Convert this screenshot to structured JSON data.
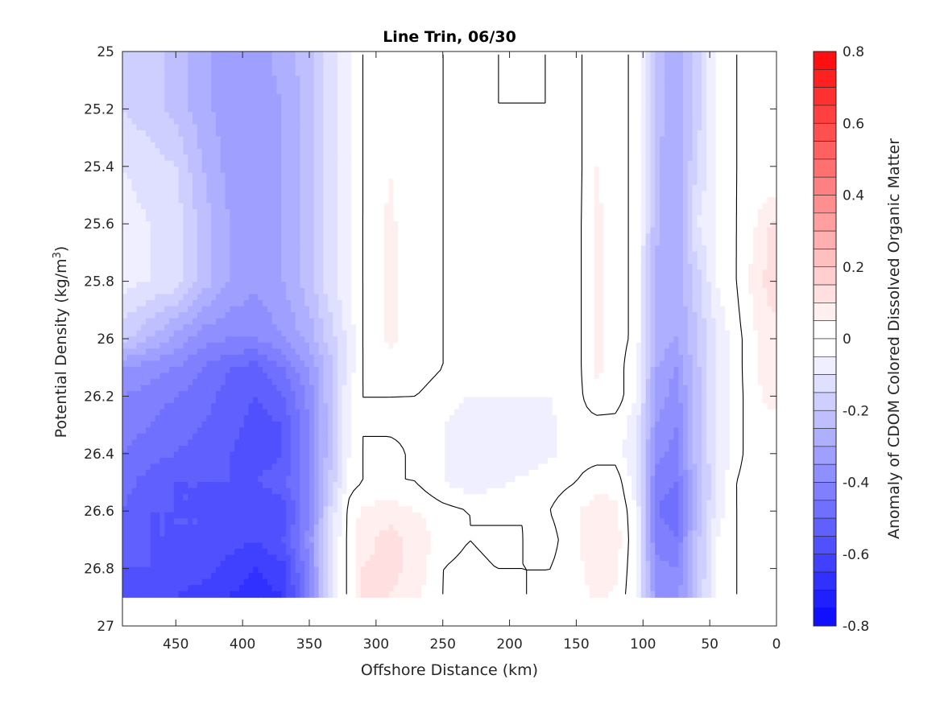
{
  "chart_data": {
    "type": "heatmap",
    "title": "Line Trin, 06/30",
    "xlabel": "Offshore Distance (km)",
    "ylabel_main": "Potential Density (kg/m",
    "ylabel_sup": "3",
    "ylabel_end": ")",
    "colorbar_label": "Anomaly of CDOM Colored Dissolved Organic Matter",
    "xlim": [
      0,
      490
    ],
    "x_reversed": true,
    "ylim": [
      25,
      27
    ],
    "y_reversed": true,
    "x_ticks": [
      450,
      400,
      350,
      300,
      250,
      200,
      150,
      100,
      50,
      0
    ],
    "x_tick_labels": [
      "450",
      "400",
      "350",
      "300",
      "250",
      "200",
      "150",
      "100",
      "50",
      "0"
    ],
    "y_ticks": [
      25,
      25.2,
      25.4,
      25.6,
      25.8,
      26,
      26.2,
      26.4,
      26.6,
      26.8,
      27
    ],
    "y_tick_labels": [
      "25",
      "25.2",
      "25.4",
      "25.6",
      "25.8",
      "26",
      "26.2",
      "26.4",
      "26.6",
      "26.8",
      "27"
    ],
    "clim": [
      -0.8,
      0.8
    ],
    "color_step": 0.05,
    "colorbar_ticks": [
      0.8,
      0.6,
      0.4,
      0.2,
      0,
      -0.2,
      -0.4,
      -0.6,
      -0.8
    ],
    "colorbar_tick_labels": [
      "0.8",
      "0.6",
      "0.4",
      "0.2",
      "0",
      "-0.2",
      "-0.4",
      "-0.6",
      "-0.8"
    ],
    "colormap": {
      "negative": "#0000ff",
      "zero": "#ffffff",
      "positive": "#ff0000"
    },
    "zero_contour_color": "#000000",
    "grid": false,
    "data_ymax": 26.9,
    "x": [
      490,
      470,
      450,
      430,
      410,
      390,
      370,
      350,
      335,
      320,
      310,
      290,
      270,
      250,
      230,
      210,
      190,
      170,
      150,
      135,
      120,
      105,
      90,
      75,
      60,
      45,
      30,
      15,
      5
    ],
    "y": [
      25.0,
      25.2,
      25.4,
      25.6,
      25.8,
      26.0,
      26.1,
      26.2,
      26.3,
      26.4,
      26.5,
      26.6,
      26.7,
      26.8,
      26.9
    ],
    "z": [
      [
        -0.15,
        -0.18,
        -0.22,
        -0.28,
        -0.33,
        -0.32,
        -0.28,
        -0.22,
        -0.12,
        -0.05,
        0.0,
        0.05,
        0.02,
        0.0,
        -0.01,
        0.0,
        0.0,
        0.0,
        -0.02,
        0.05,
        0.03,
        -0.02,
        -0.22,
        -0.28,
        -0.18,
        -0.05,
        0.0,
        0.0,
        0.0
      ],
      [
        -0.15,
        -0.18,
        -0.22,
        -0.28,
        -0.33,
        -0.34,
        -0.3,
        -0.22,
        -0.12,
        -0.05,
        0.0,
        0.05,
        0.02,
        0.0,
        -0.01,
        0.0,
        0.0,
        0.0,
        -0.02,
        0.05,
        0.03,
        -0.02,
        -0.22,
        -0.3,
        -0.18,
        -0.05,
        0.0,
        0.0,
        0.0
      ],
      [
        -0.1,
        -0.12,
        -0.15,
        -0.25,
        -0.32,
        -0.34,
        -0.3,
        -0.22,
        -0.12,
        -0.05,
        0.0,
        0.05,
        0.02,
        0.0,
        -0.01,
        0.0,
        -0.02,
        -0.04,
        -0.02,
        0.05,
        0.03,
        -0.02,
        -0.24,
        -0.3,
        -0.15,
        -0.05,
        0.0,
        0.0,
        0.0
      ],
      [
        -0.08,
        -0.1,
        -0.12,
        -0.22,
        -0.3,
        -0.34,
        -0.3,
        -0.22,
        -0.12,
        -0.05,
        0.0,
        0.06,
        0.02,
        0.0,
        -0.01,
        0.0,
        -0.02,
        -0.04,
        -0.02,
        0.06,
        0.03,
        -0.02,
        -0.24,
        -0.3,
        -0.1,
        -0.05,
        0.0,
        0.05,
        0.1
      ],
      [
        -0.08,
        -0.1,
        -0.12,
        -0.22,
        -0.3,
        -0.34,
        -0.3,
        -0.22,
        -0.12,
        -0.05,
        0.0,
        0.06,
        0.02,
        0.0,
        -0.01,
        0.0,
        -0.02,
        -0.04,
        -0.02,
        0.06,
        0.03,
        -0.02,
        -0.26,
        -0.3,
        -0.18,
        -0.05,
        0.0,
        0.08,
        0.12
      ],
      [
        -0.18,
        -0.25,
        -0.32,
        -0.38,
        -0.4,
        -0.4,
        -0.35,
        -0.28,
        -0.18,
        -0.08,
        0.0,
        0.06,
        0.02,
        0.0,
        -0.01,
        0.0,
        -0.02,
        -0.02,
        -0.02,
        0.06,
        0.03,
        -0.02,
        -0.26,
        -0.3,
        -0.2,
        -0.1,
        -0.02,
        0.05,
        0.08
      ],
      [
        -0.35,
        -0.38,
        -0.4,
        -0.45,
        -0.5,
        -0.52,
        -0.45,
        -0.35,
        -0.22,
        -0.08,
        0.0,
        0.04,
        0.02,
        0.0,
        -0.01,
        0.0,
        0.0,
        -0.02,
        -0.02,
        0.06,
        0.03,
        -0.05,
        -0.3,
        -0.35,
        -0.22,
        -0.1,
        -0.02,
        0.05,
        0.08
      ],
      [
        -0.4,
        -0.42,
        -0.45,
        -0.48,
        -0.52,
        -0.55,
        -0.5,
        -0.38,
        -0.22,
        -0.05,
        0.0,
        0.0,
        0.0,
        -0.02,
        -0.05,
        -0.05,
        -0.05,
        -0.05,
        -0.02,
        0.04,
        0.03,
        -0.05,
        -0.32,
        -0.38,
        -0.22,
        -0.1,
        -0.02,
        0.04,
        0.06
      ],
      [
        -0.42,
        -0.45,
        -0.48,
        -0.5,
        -0.52,
        -0.58,
        -0.55,
        -0.4,
        -0.22,
        -0.05,
        0.0,
        -0.02,
        -0.02,
        -0.05,
        -0.08,
        -0.08,
        -0.08,
        -0.06,
        -0.02,
        -0.02,
        -0.02,
        -0.08,
        -0.35,
        -0.4,
        -0.22,
        -0.1,
        -0.02,
        0.04,
        0.04
      ],
      [
        -0.45,
        -0.48,
        -0.5,
        -0.52,
        -0.55,
        -0.58,
        -0.55,
        -0.4,
        -0.22,
        -0.05,
        0.0,
        0.03,
        -0.02,
        -0.05,
        -0.08,
        -0.08,
        -0.08,
        -0.06,
        -0.02,
        -0.02,
        -0.02,
        -0.1,
        -0.38,
        -0.42,
        -0.22,
        -0.1,
        -0.02,
        0.04,
        0.04
      ],
      [
        -0.48,
        -0.52,
        -0.55,
        -0.55,
        -0.55,
        -0.55,
        -0.52,
        -0.4,
        -0.2,
        -0.02,
        0.0,
        0.0,
        0.0,
        -0.05,
        -0.08,
        -0.06,
        -0.04,
        -0.02,
        0.0,
        0.03,
        0.03,
        -0.08,
        -0.42,
        -0.45,
        -0.25,
        -0.1,
        0.0,
        0.04,
        0.0
      ],
      [
        -0.5,
        -0.55,
        -0.55,
        -0.55,
        -0.58,
        -0.6,
        -0.58,
        -0.4,
        -0.15,
        0.02,
        0.06,
        0.08,
        0.05,
        0.02,
        0.0,
        -0.02,
        0.0,
        0.0,
        0.04,
        0.08,
        0.06,
        -0.05,
        -0.45,
        -0.48,
        -0.25,
        -0.08,
        0.0,
        0.0,
        0.0
      ],
      [
        -0.52,
        -0.55,
        -0.55,
        -0.55,
        -0.58,
        -0.6,
        -0.55,
        -0.38,
        -0.12,
        0.02,
        0.08,
        0.12,
        0.08,
        0.03,
        0.0,
        0.02,
        0.0,
        -0.02,
        0.04,
        0.1,
        0.08,
        -0.05,
        -0.42,
        -0.45,
        -0.22,
        -0.05,
        0.0,
        0.0,
        0.0
      ],
      [
        -0.55,
        -0.55,
        -0.58,
        -0.58,
        -0.62,
        -0.65,
        -0.62,
        -0.4,
        -0.12,
        0.02,
        0.1,
        0.12,
        0.08,
        0.0,
        -0.02,
        0.0,
        0.0,
        0.0,
        0.03,
        0.08,
        0.06,
        -0.05,
        -0.38,
        -0.4,
        -0.22,
        -0.05,
        0.0,
        0.0,
        0.0
      ],
      [
        -0.55,
        -0.58,
        -0.6,
        -0.62,
        -0.65,
        -0.68,
        -0.65,
        -0.42,
        -0.12,
        0.02,
        0.1,
        0.1,
        0.06,
        0.0,
        -0.05,
        -0.02,
        0.0,
        0.0,
        0.03,
        0.06,
        0.04,
        -0.05,
        -0.35,
        -0.38,
        -0.2,
        -0.05,
        0.0,
        0.0,
        0.0
      ]
    ]
  }
}
